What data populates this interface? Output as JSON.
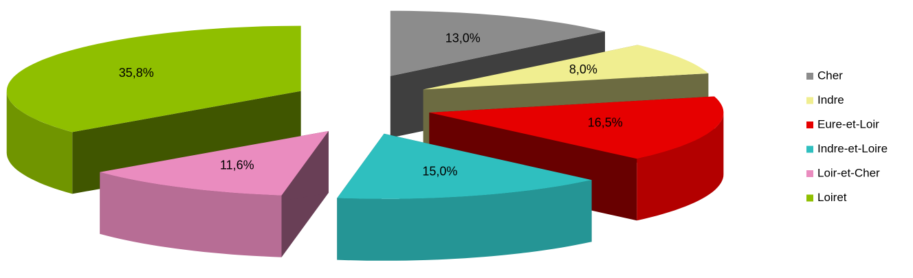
{
  "chart_data": {
    "type": "pie",
    "categories": [
      "Cher",
      "Indre",
      "Eure-et-Loir",
      "Indre-et-Loire",
      "Loir-et-Cher",
      "Loiret"
    ],
    "values": [
      13.0,
      8.0,
      16.5,
      15.0,
      11.6,
      35.8
    ],
    "value_labels": [
      "13,0%",
      "8,0%",
      "16,5%",
      "15,0%",
      "11,6%",
      "35,8%"
    ],
    "colors": [
      "#8c8c8c",
      "#f0ee90",
      "#e60000",
      "#2fbfbf",
      "#ea8cbf",
      "#8fbf00"
    ],
    "legend": "right"
  }
}
